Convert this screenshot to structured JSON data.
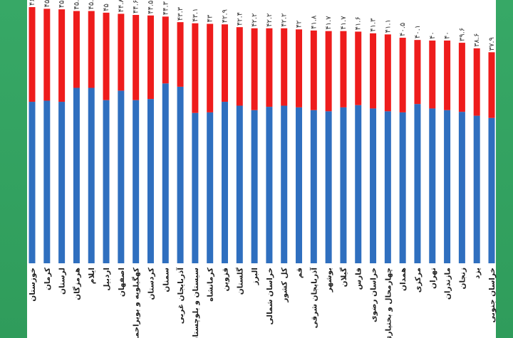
{
  "chart_data": {
    "type": "bar",
    "stacked": true,
    "title": "",
    "xlabel": "",
    "ylabel": "",
    "categories": [
      "خوزستان",
      "کرمان",
      "لرستان",
      "هرمزگان",
      "ایلام",
      "اردبیل",
      "اصفهان",
      "کهگیلویه و بویراحمد",
      "کردستان",
      "سمنان",
      "آذربایجان غربی",
      "سیستان و بلوچستان",
      "کرمانشاه",
      "قزوین",
      "گلستان",
      "البرز",
      "خراسان شمالی",
      "کل کشور",
      "قم",
      "آذربایجان شرقی",
      "بوشهر",
      "گیلان",
      "فارس",
      "خراسان رضوی",
      "چهارمحال و بختیاری",
      "همدان",
      "مرکزی",
      "تهران",
      "مازندران",
      "زنجان",
      "یزد",
      "خراسان جنوبی"
    ],
    "value_labels": [
      "۴۶",
      "۴۵.۷",
      "۴۵.۶",
      "۴۵.۳",
      "۴۵.۳",
      "۴۵",
      "۴۴.۸",
      "۴۴.۶",
      "۴۴.۵",
      "۴۴.۳",
      "۴۳.۳",
      "۴۳.۱",
      "۴۳",
      "۴۲.۹",
      "۴۲.۴",
      "۴۲.۲",
      "۴۲.۲",
      "۴۲.۲",
      "۴۲",
      "۴۱.۸",
      "۴۱.۷",
      "۴۱.۷",
      "۴۱.۶",
      "۴۱.۳",
      "۴۱.۱",
      "۴۰.۵",
      "۴۰.۱",
      "۴۰",
      "۴۰",
      "۳۹.۶",
      "۳۸.۶",
      "۳۷.۹"
    ],
    "series": [
      {
        "name": "blue",
        "color": "#2f6fbf",
        "values": [
          29.0,
          29.2,
          29.0,
          31.5,
          31.5,
          29.3,
          31.0,
          29.3,
          29.5,
          32.3,
          31.7,
          27.0,
          27.1,
          29.0,
          28.3,
          27.5,
          28.1,
          28.3,
          28.0,
          27.5,
          27.3,
          28.0,
          28.4,
          27.8,
          27.3,
          27.1,
          28.6,
          27.8,
          27.5,
          27.2,
          26.5,
          26.1
        ]
      },
      {
        "name": "red",
        "color": "#ee1c1c",
        "values": [
          17.0,
          16.5,
          16.6,
          13.8,
          13.8,
          15.7,
          13.8,
          15.3,
          15.0,
          12.0,
          11.6,
          16.1,
          15.9,
          13.9,
          14.1,
          14.7,
          14.1,
          13.9,
          14.0,
          14.3,
          14.4,
          13.7,
          13.2,
          13.5,
          13.8,
          13.4,
          11.5,
          12.2,
          12.5,
          12.4,
          12.1,
          11.8
        ]
      }
    ],
    "ylim": [
      0,
      46
    ],
    "grid": false
  }
}
